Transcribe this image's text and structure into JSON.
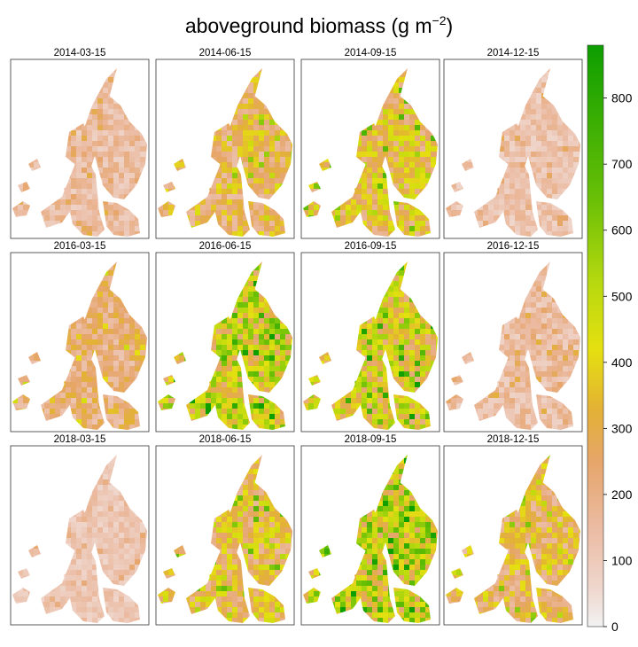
{
  "chart_data": {
    "type": "heatmap",
    "title": "aboveground biomass (g m",
    "title_superscript": "−2",
    "title_suffix": ")",
    "panels": [
      {
        "date": "2014-03-15",
        "level": 0.18
      },
      {
        "date": "2014-06-15",
        "level": 0.34
      },
      {
        "date": "2014-09-15",
        "level": 0.42
      },
      {
        "date": "2014-12-15",
        "level": 0.16
      },
      {
        "date": "2016-03-15",
        "level": 0.28
      },
      {
        "date": "2016-06-15",
        "level": 0.55
      },
      {
        "date": "2016-09-15",
        "level": 0.5
      },
      {
        "date": "2016-12-15",
        "level": 0.18
      },
      {
        "date": "2018-03-15",
        "level": 0.14
      },
      {
        "date": "2018-06-15",
        "level": 0.4
      },
      {
        "date": "2018-09-15",
        "level": 0.58
      },
      {
        "date": "2018-12-15",
        "level": 0.36
      }
    ],
    "colorbar": {
      "range": [
        0,
        880
      ],
      "ticks": [
        "0",
        "100",
        "200",
        "300",
        "400",
        "500",
        "600",
        "700",
        "800"
      ],
      "tick_values": [
        0,
        100,
        200,
        300,
        400,
        500,
        600,
        700,
        800
      ],
      "colors": [
        {
          "v": 0,
          "c": "#f2f2f2"
        },
        {
          "v": 60,
          "c": "#efd6cc"
        },
        {
          "v": 150,
          "c": "#ebbba2"
        },
        {
          "v": 250,
          "c": "#e6a56a"
        },
        {
          "v": 330,
          "c": "#e3b234"
        },
        {
          "v": 420,
          "c": "#e5e010"
        },
        {
          "v": 520,
          "c": "#b7d90f"
        },
        {
          "v": 650,
          "c": "#68bf06"
        },
        {
          "v": 880,
          "c": "#0d9e00"
        }
      ]
    }
  }
}
